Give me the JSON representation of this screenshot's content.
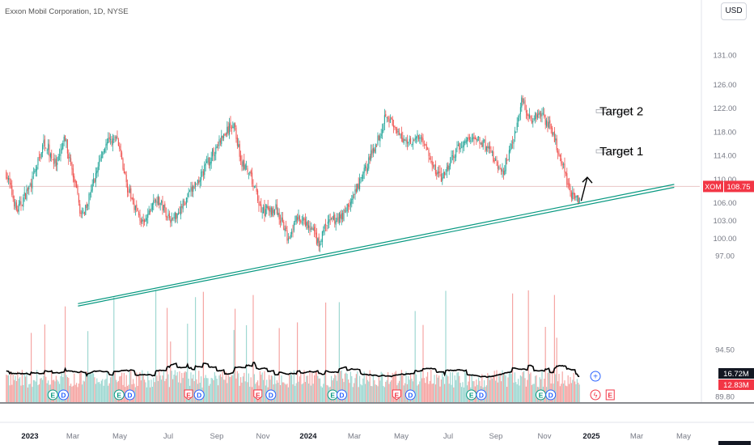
{
  "header": {
    "symbol_title": "Exxon Mobil Corporation, 1D, NYSE",
    "currency_button": "USD"
  },
  "colors": {
    "up": "#26a69a",
    "down": "#ef5350",
    "trendline": "#089981",
    "ma": "#000000",
    "price_label_bg": "#f23645",
    "grid": "#e0e3eb",
    "axis_text": "#787b86"
  },
  "chart_data": {
    "type": "candlestick",
    "title": "Exxon Mobil Corporation, 1D, NYSE",
    "ylim": [
      88.5,
      136
    ],
    "y_ticks": [
      "89.80",
      "94.50",
      "97.00",
      "100.00",
      "103.00",
      "106.00",
      "110.00",
      "114.00",
      "118.00",
      "122.00",
      "126.00",
      "131.00"
    ],
    "x_ticks": [
      "2023",
      "Mar",
      "May",
      "Jul",
      "Sep",
      "Nov",
      "2024",
      "Mar",
      "May",
      "Jul",
      "Sep",
      "Nov",
      "2025",
      "Mar",
      "May"
    ],
    "price_path": [
      [
        "2022-12-01",
        111.0
      ],
      [
        "2022-12-15",
        104.5
      ],
      [
        "2023-01-05",
        110.0
      ],
      [
        "2023-01-20",
        116.5
      ],
      [
        "2023-02-05",
        112.0
      ],
      [
        "2023-02-16",
        117.0
      ],
      [
        "2023-03-10",
        103.5
      ],
      [
        "2023-03-22",
        108.0
      ],
      [
        "2023-04-08",
        115.5
      ],
      [
        "2023-04-25",
        117.0
      ],
      [
        "2023-05-10",
        108.0
      ],
      [
        "2023-05-30",
        102.0
      ],
      [
        "2023-06-15",
        107.0
      ],
      [
        "2023-07-06",
        103.0
      ],
      [
        "2023-07-25",
        106.5
      ],
      [
        "2023-08-15",
        111.0
      ],
      [
        "2023-09-05",
        116.0
      ],
      [
        "2023-09-25",
        119.5
      ],
      [
        "2023-10-05",
        113.0
      ],
      [
        "2023-10-20",
        109.5
      ],
      [
        "2023-11-01",
        104.5
      ],
      [
        "2023-11-20",
        105.0
      ],
      [
        "2023-12-05",
        100.0
      ],
      [
        "2023-12-18",
        103.5
      ],
      [
        "2024-01-08",
        101.0
      ],
      [
        "2024-01-16",
        98.5
      ],
      [
        "2024-01-22",
        102.0
      ],
      [
        "2024-02-15",
        104.0
      ],
      [
        "2024-03-01",
        107.0
      ],
      [
        "2024-03-20",
        113.0
      ],
      [
        "2024-04-05",
        118.0
      ],
      [
        "2024-04-12",
        121.5
      ],
      [
        "2024-04-26",
        117.5
      ],
      [
        "2024-05-10",
        116.5
      ],
      [
        "2024-05-30",
        117.0
      ],
      [
        "2024-06-12",
        112.0
      ],
      [
        "2024-06-25",
        110.0
      ],
      [
        "2024-07-10",
        114.0
      ],
      [
        "2024-07-25",
        116.5
      ],
      [
        "2024-08-10",
        117.0
      ],
      [
        "2024-08-30",
        114.0
      ],
      [
        "2024-09-10",
        110.5
      ],
      [
        "2024-09-25",
        116.0
      ],
      [
        "2024-10-07",
        123.5
      ],
      [
        "2024-10-20",
        120.0
      ],
      [
        "2024-10-31",
        121.5
      ],
      [
        "2024-11-12",
        119.0
      ],
      [
        "2024-11-25",
        114.5
      ],
      [
        "2024-12-05",
        110.0
      ],
      [
        "2024-12-13",
        106.8
      ],
      [
        "2024-12-20",
        106.5
      ],
      [
        "2024-12-23",
        108.75
      ]
    ],
    "last_price": {
      "symbol": "XOM",
      "value": "108.75"
    },
    "volume": {
      "value1": "16.72M",
      "value2": "12.83M"
    },
    "trendlines": [
      {
        "from": [
          "2023-03-05",
          88.9
        ],
        "to": [
          "2025-04-25",
          109.1
        ]
      },
      {
        "from": [
          "2023-03-05",
          88.5
        ],
        "to": [
          "2025-04-25",
          108.6
        ]
      }
    ],
    "annotations": [
      {
        "text": "Target 2",
        "date": "2025-01-17",
        "price": 121.5
      },
      {
        "text": "Target 1",
        "date": "2025-01-17",
        "price": 114.7
      }
    ],
    "arrow": {
      "from": [
        "2024-12-24",
        106.3
      ],
      "to": [
        "2025-01-01",
        110.3
      ]
    },
    "event_badges": [
      {
        "label": "E",
        "date": "2023-01-31",
        "kind": "earnings"
      },
      {
        "label": "D",
        "date": "2023-02-14",
        "kind": "dividend"
      },
      {
        "label": "E",
        "date": "2023-04-28",
        "kind": "earnings"
      },
      {
        "label": "D",
        "date": "2023-05-12",
        "kind": "dividend"
      },
      {
        "label": "E",
        "date": "2023-07-28",
        "kind": "earnings-down"
      },
      {
        "label": "D",
        "date": "2023-08-11",
        "kind": "dividend"
      },
      {
        "label": "E",
        "date": "2023-10-27",
        "kind": "earnings-down"
      },
      {
        "label": "D",
        "date": "2023-11-13",
        "kind": "dividend"
      },
      {
        "label": "E",
        "date": "2024-02-02",
        "kind": "earnings"
      },
      {
        "label": "D",
        "date": "2024-02-14",
        "kind": "dividend"
      },
      {
        "label": "E",
        "date": "2024-04-26",
        "kind": "earnings-down"
      },
      {
        "label": "D",
        "date": "2024-05-14",
        "kind": "dividend"
      },
      {
        "label": "E",
        "date": "2024-08-02",
        "kind": "earnings"
      },
      {
        "label": "D",
        "date": "2024-08-15",
        "kind": "dividend"
      },
      {
        "label": "E",
        "date": "2024-11-01",
        "kind": "earnings"
      },
      {
        "label": "D",
        "date": "2024-11-14",
        "kind": "dividend"
      },
      {
        "label": "E",
        "date": "2025-01-31",
        "kind": "upcoming"
      }
    ]
  }
}
